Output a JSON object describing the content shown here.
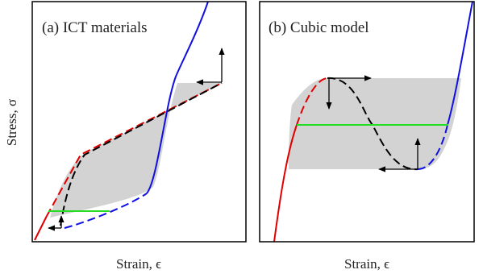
{
  "figure": {
    "ylabel": "Stress, σ",
    "panels": [
      {
        "label": "(a) ICT materials",
        "xlabel": "Strain, ϵ"
      },
      {
        "label": "(b) Cubic model",
        "xlabel": "Strain, ϵ"
      }
    ]
  }
}
